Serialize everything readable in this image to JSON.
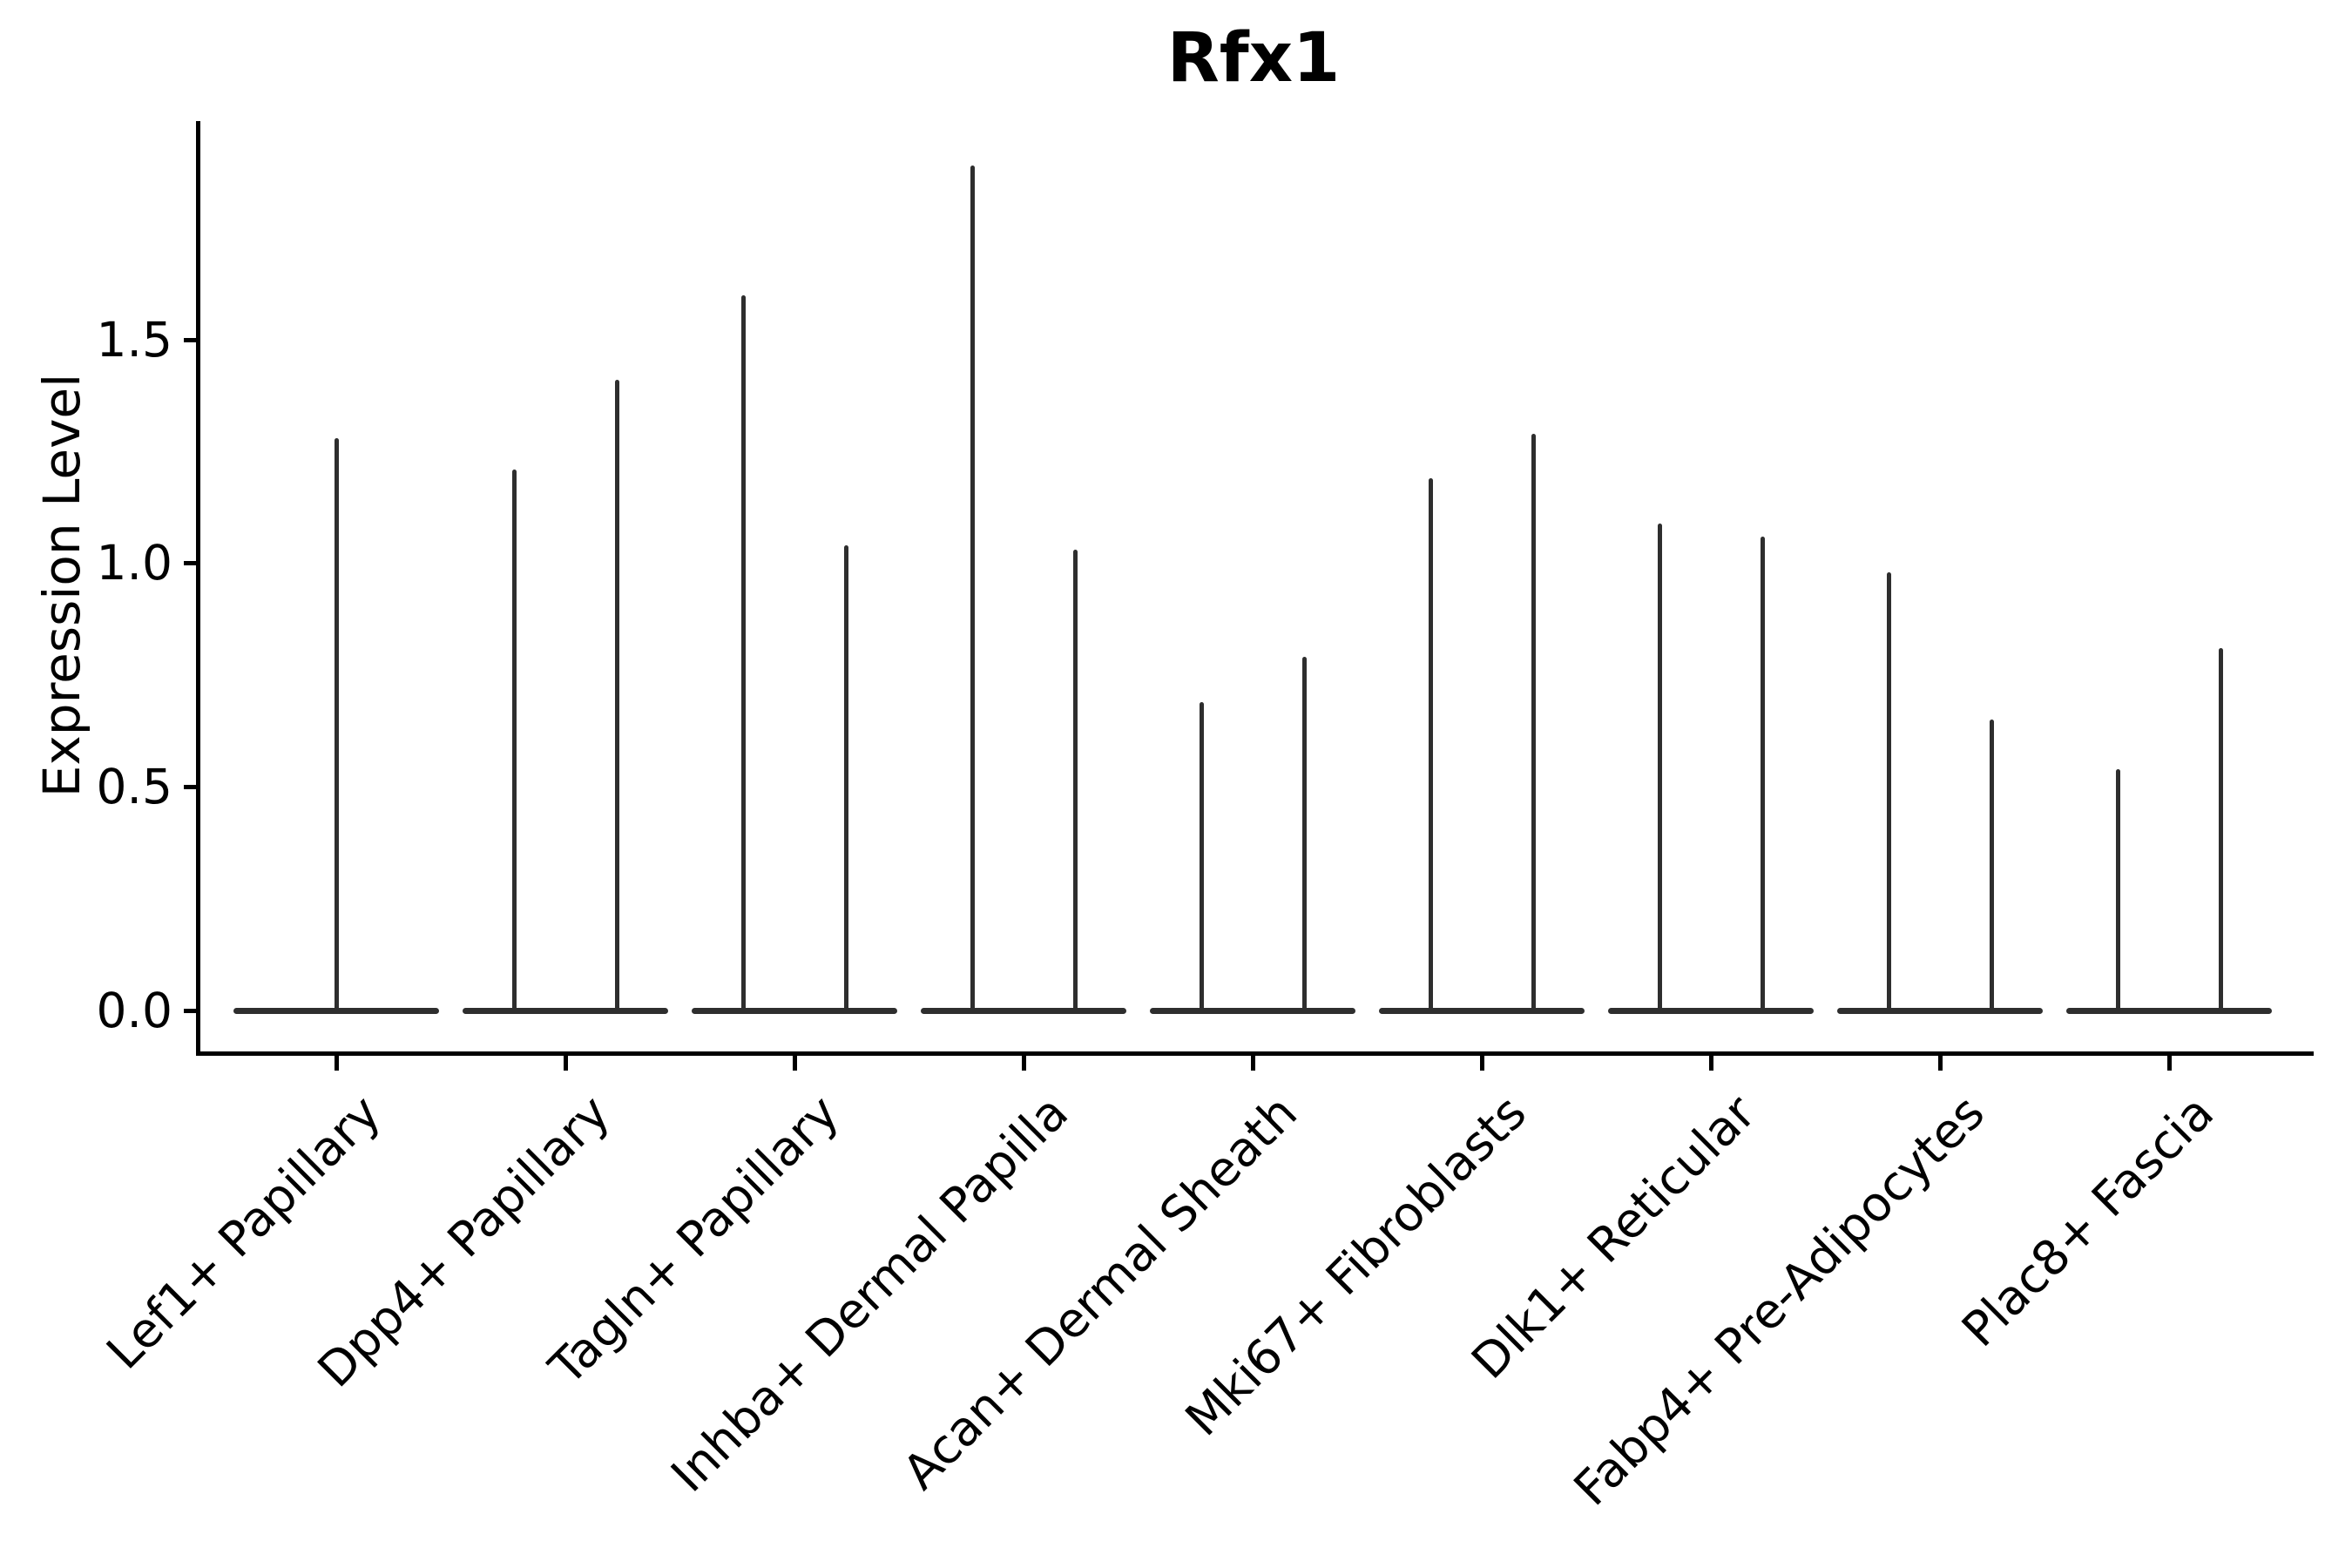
{
  "figure": {
    "title": "Rfx1",
    "ylabel": "Expression Level"
  },
  "chart_data": {
    "type": "violin",
    "title": "Rfx1",
    "xlabel": "",
    "ylabel": "Expression Level",
    "grid": false,
    "legend": null,
    "background_color": "#ffffff",
    "axis_color": "#000000",
    "violin_color": "#2e2e2e",
    "ylim": [
      -0.1,
      1.99
    ],
    "ytick_values": [
      0.0,
      0.5,
      1.0,
      1.5
    ],
    "ytick_labels": [
      "0.0",
      "0.5",
      "1.0",
      "1.5"
    ],
    "categories": [
      "Lef1+ Papillary",
      "Dpp4+ Papillary",
      "Tagln+ Papillary",
      "Inhba+ Dermal Papilla",
      "Acan+ Dermal Sheath",
      "Mki67+ Fibroblasts",
      "Dlk1+ Reticular",
      "Fabp4+ Pre-Adipocytes",
      "Plac8+ Fascia"
    ],
    "violins": [
      {
        "category": "Lef1+ Papillary",
        "baseline_value": 0.0,
        "spike_values": [
          1.28
        ]
      },
      {
        "category": "Dpp4+ Papillary",
        "baseline_value": 0.0,
        "spike_values": [
          1.21,
          1.41
        ]
      },
      {
        "category": "Tagln+ Papillary",
        "baseline_value": 0.0,
        "spike_values": [
          1.6,
          1.04
        ]
      },
      {
        "category": "Inhba+ Dermal Papilla",
        "baseline_value": 0.0,
        "spike_values": [
          1.89,
          1.03
        ]
      },
      {
        "category": "Acan+ Dermal Sheath",
        "baseline_value": 0.0,
        "spike_values": [
          0.69,
          0.79
        ]
      },
      {
        "category": "Mki67+ Fibroblasts",
        "baseline_value": 0.0,
        "spike_values": [
          1.19,
          1.29
        ]
      },
      {
        "category": "Dlk1+ Reticular",
        "baseline_value": 0.0,
        "spike_values": [
          1.09,
          1.06
        ]
      },
      {
        "category": "Fabp4+ Pre-Adipocytes",
        "baseline_value": 0.0,
        "spike_values": [
          0.98,
          0.65
        ]
      },
      {
        "category": "Plac8+ Fascia",
        "baseline_value": 0.0,
        "spike_values": [
          0.54,
          0.81
        ]
      }
    ],
    "notes": "Each violin is collapsed into a wide flat line at expression 0 with one or two thin vertical tails reaching the maximum expression value (two dodged sub-violins per category; first category shows a single central tail)."
  }
}
